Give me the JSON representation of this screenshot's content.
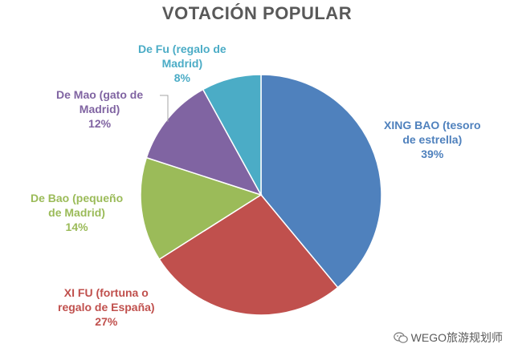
{
  "chart_data": {
    "type": "pie",
    "title": "VOTACIÓN POPULAR",
    "slices": [
      {
        "label_lines": [
          "XING BAO (tesoro",
          "de estrella)"
        ],
        "percent_label": "39%",
        "value": 39,
        "color": "#4F81BD"
      },
      {
        "label_lines": [
          "XI FU (fortuna o",
          "regalo de España)"
        ],
        "percent_label": "27%",
        "value": 27,
        "color": "#C0504D"
      },
      {
        "label_lines": [
          "De Bao (pequeño",
          "de Madrid)"
        ],
        "percent_label": "14%",
        "value": 14,
        "color": "#9BBB59"
      },
      {
        "label_lines": [
          "De Mao (gato de",
          "Madrid)"
        ],
        "percent_label": "12%",
        "value": 12,
        "color": "#8064A2"
      },
      {
        "label_lines": [
          "De Fu (regalo de",
          "Madrid)"
        ],
        "percent_label": "8%",
        "value": 8,
        "color": "#4BACC6"
      }
    ],
    "start_angle_deg": 0,
    "direction": "clockwise"
  },
  "watermark": {
    "text": "WEGO旅游规划师",
    "icon": "wechat-icon"
  }
}
